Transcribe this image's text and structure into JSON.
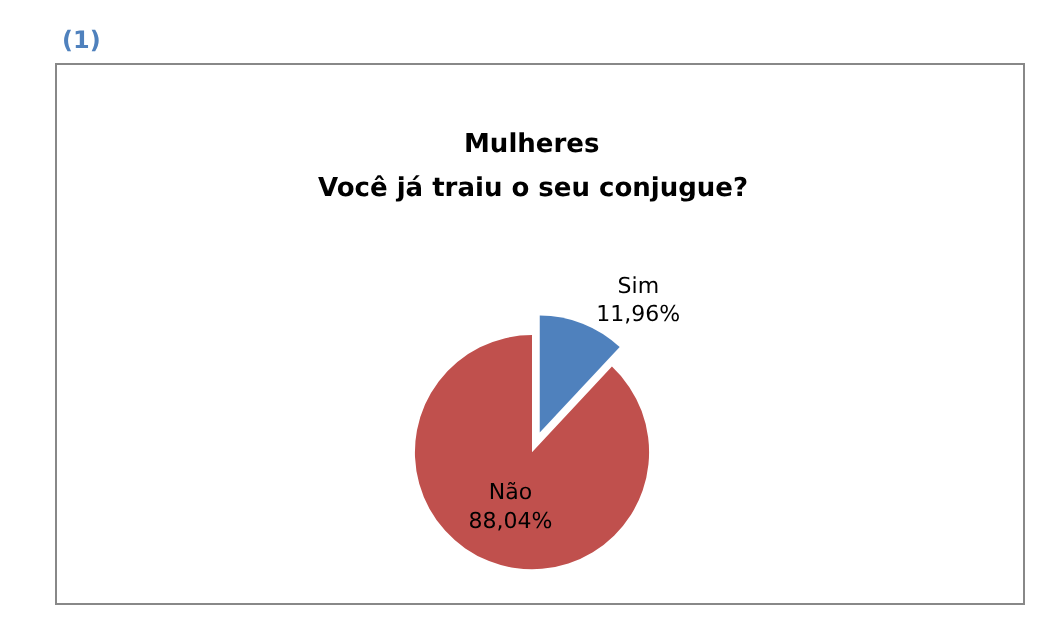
{
  "chart_data": {
    "type": "pie",
    "title": "Mulheres",
    "subtitle": "Você já traiu o seu conjugue?",
    "annotations": [
      "(1)"
    ],
    "categories": [
      "Sim",
      "Não"
    ],
    "values": [
      11.96,
      88.04
    ],
    "colors": [
      "#4f81bd",
      "#c0504d"
    ],
    "value_labels": [
      "11,96%",
      "88,04%"
    ],
    "legend": false
  }
}
